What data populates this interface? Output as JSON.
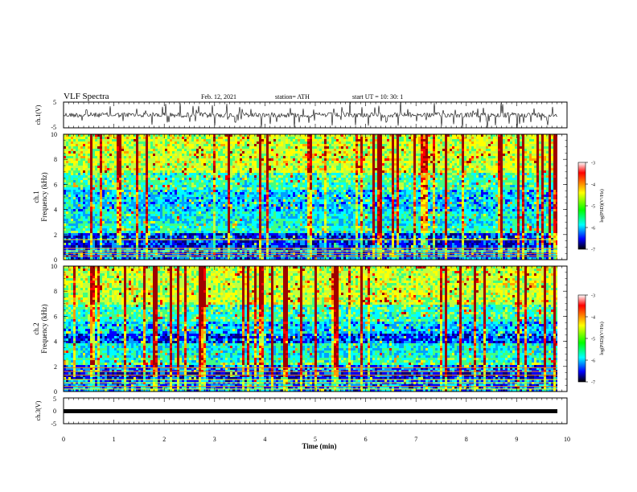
{
  "header": {
    "title": "VLF Spectra",
    "date": "Feb. 12, 2021",
    "station": "station= ATH",
    "start": "start  UT =   10: 30: 1"
  },
  "colors": {
    "spectrogram_scale": [
      "#00007f",
      "#0000ff",
      "#00a0ff",
      "#00ffff",
      "#40ff80",
      "#c0ff40",
      "#ffff00",
      "#ffa000",
      "#ff0000",
      "#a00000"
    ],
    "colorbar_scale": [
      "#ffffff",
      "#ff0000",
      "#ffff00",
      "#00ff00",
      "#00ffff",
      "#0000ff",
      "#000000"
    ]
  },
  "chart_data": [
    {
      "type": "line",
      "ylabel": "ch.1(V)",
      "yticks": [
        "5",
        "-5"
      ],
      "ylim": [
        -5,
        5
      ],
      "xlim": [
        0,
        10
      ],
      "baseline": 0,
      "grid": false
    },
    {
      "type": "heatmap",
      "ylabel": "ch.1",
      "ylabel2": "Frequency  (kHz)",
      "ylim": [
        0,
        10
      ],
      "yticks": [
        "0",
        "2",
        "4",
        "6",
        "8",
        "10"
      ],
      "xlim": [
        0,
        10
      ],
      "colorbar": {
        "label": "log(PSD)(V²/Hz)",
        "ticks": [
          "-3",
          "-4",
          "-5",
          "-6",
          "-7"
        ],
        "range": [
          -7,
          -3
        ]
      }
    },
    {
      "type": "heatmap",
      "ylabel": "ch.2",
      "ylabel2": "Frequency  (kHz)",
      "ylim": [
        0,
        10
      ],
      "yticks": [
        "0",
        "2",
        "4",
        "6",
        "8",
        "10"
      ],
      "xlim": [
        0,
        10
      ],
      "colorbar": {
        "label": "log(PSD)(V²/Hz)",
        "ticks": [
          "-3",
          "-4",
          "-5",
          "-6",
          "-7"
        ],
        "range": [
          -7,
          -3
        ]
      }
    },
    {
      "type": "line",
      "ylabel": "ch.3(V)",
      "yticks": [
        "5",
        "0",
        "-5"
      ],
      "ylim": [
        -5,
        5
      ],
      "xlim": [
        0,
        10
      ],
      "baseline": 0,
      "grid": false,
      "xlabel": "Time  (min)",
      "xticks": [
        "0",
        "1",
        "2",
        "3",
        "4",
        "5",
        "6",
        "7",
        "8",
        "9",
        "10"
      ]
    }
  ]
}
